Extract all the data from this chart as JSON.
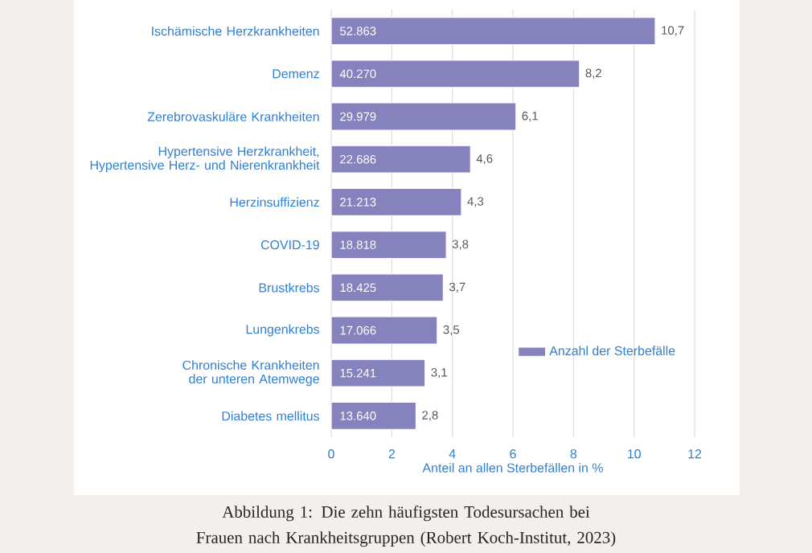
{
  "chart_data": {
    "type": "bar",
    "orientation": "horizontal",
    "categories": [
      "Ischämische Herzkrankheiten",
      "Demenz",
      "Zerebrovaskuläre Krankheiten",
      "Hypertensive Herzkrankheit, Hypertensive Herz- und Nierenkrankheit",
      "Herzinsuffizienz",
      "COVID-19",
      "Brustkrebs",
      "Lungenkrebs",
      "Chronische Krankheiten der unteren Atemwege",
      "Diabetes mellitus"
    ],
    "series": [
      {
        "name": "Anzahl der Sterbefälle",
        "color": "#8682bd",
        "values": [
          10.7,
          8.2,
          6.1,
          4.6,
          4.3,
          3.8,
          3.7,
          3.5,
          3.1,
          2.8
        ],
        "value_labels": [
          "10,7",
          "8,2",
          "6,1",
          "4,6",
          "4,3",
          "3,8",
          "3,7",
          "3,5",
          "3,1",
          "2,8"
        ]
      }
    ],
    "xlabel": "Anteil an allen Sterbefällen in %",
    "xlim": [
      0,
      12
    ],
    "xticks": [
      0,
      2,
      4,
      6,
      8,
      10,
      12
    ],
    "grid": "x",
    "legend": "bottom right",
    "annotations": [
      {
        "text": "52.863",
        "y": "Ischämische Herzkrankheiten"
      },
      {
        "text": "40.270",
        "y": "Demenz"
      },
      {
        "text": "29.979",
        "y": "Zerebrovaskuläre Krankheiten"
      },
      {
        "text": "22.686",
        "y": "Hypertensive Herzkrankheit, Hypertensive Herz- und Nierenkrankheit"
      },
      {
        "text": "21.213",
        "y": "Herzinsuffizienz"
      },
      {
        "text": "18.818",
        "y": "COVID-19"
      },
      {
        "text": "18.425",
        "y": "Brustkrebs"
      },
      {
        "text": "17.066",
        "y": "Lungenkrebs"
      },
      {
        "text": "15.241",
        "y": "Chronische Krankheiten der unteren Atemwege"
      },
      {
        "text": "13.640",
        "y": "Diabetes mellitus"
      },
      "Abbildung 1: Die zehn häufigsten Todesursachen bei Frauen nach Krankheitsgruppen (Robert Koch-Institut, 2023)"
    ]
  }
}
